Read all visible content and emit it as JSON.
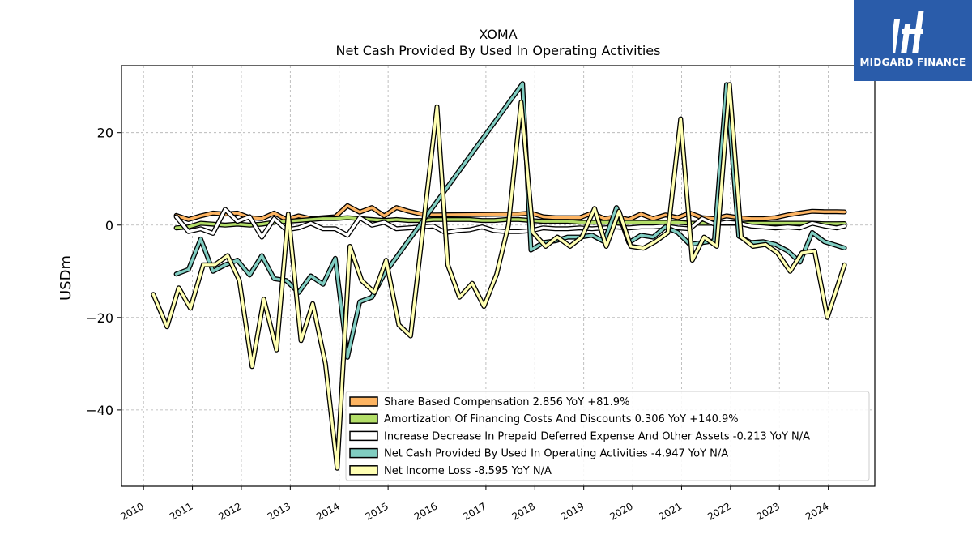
{
  "brand": {
    "name": "MIDGARD FINANCE",
    "logo_icon": "midgard-logo-icon",
    "bg": "#2a5caa"
  },
  "chart_data": {
    "type": "line",
    "title": "XOMA",
    "subtitle": "Net Cash Provided By Used In Operating Activities",
    "ylabel": "USDm",
    "xlabel": "",
    "xlim": [
      2009.55,
      2024.95
    ],
    "ylim": [
      -56.5,
      34.5
    ],
    "x_ticks": [
      2010,
      2011,
      2012,
      2013,
      2014,
      2015,
      2016,
      2017,
      2018,
      2019,
      2020,
      2021,
      2022,
      2023,
      2024
    ],
    "y_ticks": [
      -40,
      -20,
      0,
      20
    ],
    "grid": true,
    "legend_position": "lower-right",
    "series": [
      {
        "name": "Share Based Compensation",
        "legend": "Share Based Compensation  2.856 YoY +81.9%",
        "color": "#fdb462",
        "points": [
          [
            2010.67,
            2.1
          ],
          [
            2010.92,
            1.2
          ],
          [
            2011.17,
            2.0
          ],
          [
            2011.42,
            2.6
          ],
          [
            2011.67,
            2.4
          ],
          [
            2011.92,
            2.6
          ],
          [
            2012.17,
            1.6
          ],
          [
            2012.42,
            1.4
          ],
          [
            2012.67,
            2.6
          ],
          [
            2012.92,
            1.2
          ],
          [
            2013.17,
            2.0
          ],
          [
            2013.42,
            1.4
          ],
          [
            2013.67,
            1.6
          ],
          [
            2013.92,
            1.8
          ],
          [
            2014.17,
            4.2
          ],
          [
            2014.42,
            2.8
          ],
          [
            2014.67,
            3.8
          ],
          [
            2014.92,
            2.0
          ],
          [
            2015.17,
            3.8
          ],
          [
            2015.42,
            3.0
          ],
          [
            2015.67,
            2.4
          ],
          [
            2015.92,
            2.2
          ],
          [
            2017.67,
            2.4
          ],
          [
            2017.92,
            2.6
          ],
          [
            2018.17,
            1.8
          ],
          [
            2018.42,
            1.6
          ],
          [
            2018.67,
            1.6
          ],
          [
            2018.92,
            1.6
          ],
          [
            2019.17,
            2.6
          ],
          [
            2019.42,
            1.4
          ],
          [
            2019.67,
            1.8
          ],
          [
            2019.92,
            1.2
          ],
          [
            2020.17,
            2.4
          ],
          [
            2020.42,
            1.4
          ],
          [
            2020.67,
            2.2
          ],
          [
            2020.92,
            1.6
          ],
          [
            2021.17,
            2.6
          ],
          [
            2021.42,
            1.6
          ],
          [
            2021.67,
            1.4
          ],
          [
            2021.92,
            2.0
          ],
          [
            2022.17,
            1.6
          ],
          [
            2022.42,
            1.4
          ],
          [
            2022.67,
            1.4
          ],
          [
            2022.92,
            1.6
          ],
          [
            2023.17,
            2.2
          ],
          [
            2023.42,
            2.6
          ],
          [
            2023.67,
            3.0
          ],
          [
            2023.92,
            2.9
          ],
          [
            2024.17,
            2.9
          ],
          [
            2024.33,
            2.86
          ]
        ]
      },
      {
        "name": "Amortization Of Financing Costs And Discounts",
        "legend": "Amortization Of Financing Costs And Discounts  0.306 YoY +140.9%",
        "color": "#b3de69",
        "points": [
          [
            2010.67,
            -0.6
          ],
          [
            2010.92,
            -0.4
          ],
          [
            2011.17,
            0.4
          ],
          [
            2011.42,
            0.2
          ],
          [
            2011.67,
            0.0
          ],
          [
            2011.92,
            0.2
          ],
          [
            2012.17,
            0.0
          ],
          [
            2012.42,
            0.2
          ],
          [
            2012.67,
            0.6
          ],
          [
            2012.92,
            0.8
          ],
          [
            2013.17,
            1.0
          ],
          [
            2013.42,
            1.2
          ],
          [
            2013.67,
            1.4
          ],
          [
            2013.92,
            1.4
          ],
          [
            2014.17,
            1.6
          ],
          [
            2014.42,
            1.4
          ],
          [
            2014.67,
            1.2
          ],
          [
            2014.92,
            1.0
          ],
          [
            2015.17,
            1.2
          ],
          [
            2015.42,
            1.0
          ],
          [
            2015.67,
            1.0
          ],
          [
            2015.92,
            1.2
          ],
          [
            2016.17,
            1.2
          ],
          [
            2016.42,
            1.2
          ],
          [
            2016.67,
            1.2
          ],
          [
            2016.92,
            1.0
          ],
          [
            2017.17,
            1.0
          ],
          [
            2017.42,
            1.2
          ],
          [
            2017.67,
            1.2
          ],
          [
            2017.92,
            1.0
          ],
          [
            2018.17,
            0.8
          ],
          [
            2018.42,
            0.8
          ],
          [
            2018.67,
            0.8
          ],
          [
            2018.92,
            0.6
          ],
          [
            2019.17,
            0.6
          ],
          [
            2019.42,
            0.6
          ],
          [
            2019.67,
            0.6
          ],
          [
            2019.92,
            0.6
          ],
          [
            2020.17,
            0.6
          ],
          [
            2020.42,
            0.6
          ],
          [
            2020.67,
            0.6
          ],
          [
            2020.92,
            0.6
          ],
          [
            2021.17,
            0.4
          ],
          [
            2021.42,
            0.4
          ],
          [
            2021.67,
            0.4
          ],
          [
            2021.92,
            0.4
          ],
          [
            2022.17,
            0.4
          ],
          [
            2022.42,
            0.4
          ],
          [
            2022.67,
            0.4
          ],
          [
            2022.92,
            0.4
          ],
          [
            2023.17,
            0.4
          ],
          [
            2023.42,
            0.4
          ],
          [
            2023.67,
            0.4
          ],
          [
            2023.92,
            0.3
          ],
          [
            2024.17,
            0.3
          ],
          [
            2024.33,
            0.31
          ]
        ]
      },
      {
        "name": "Increase Decrease In Prepaid Deferred Expense And Other Assets",
        "legend": "Increase Decrease In Prepaid Deferred Expense And Other Assets  -0.213 YoY N/A",
        "color": "#ffffff",
        "points": [
          [
            2010.67,
            1.8
          ],
          [
            2010.92,
            -1.4
          ],
          [
            2011.17,
            -0.8
          ],
          [
            2011.42,
            -1.8
          ],
          [
            2011.67,
            3.4
          ],
          [
            2011.92,
            0.8
          ],
          [
            2012.17,
            1.8
          ],
          [
            2012.42,
            -2.6
          ],
          [
            2012.67,
            1.4
          ],
          [
            2012.92,
            -1.0
          ],
          [
            2013.17,
            -0.6
          ],
          [
            2013.42,
            0.4
          ],
          [
            2013.67,
            -0.8
          ],
          [
            2013.92,
            -0.8
          ],
          [
            2014.17,
            -2.2
          ],
          [
            2014.42,
            1.6
          ],
          [
            2014.67,
            0.0
          ],
          [
            2014.92,
            0.6
          ],
          [
            2015.17,
            -0.8
          ],
          [
            2015.42,
            -0.6
          ],
          [
            2015.67,
            -0.4
          ],
          [
            2015.92,
            -0.2
          ],
          [
            2016.17,
            -1.6
          ],
          [
            2016.42,
            -1.2
          ],
          [
            2016.67,
            -1.0
          ],
          [
            2016.92,
            -0.4
          ],
          [
            2017.17,
            -1.2
          ],
          [
            2017.42,
            -1.4
          ],
          [
            2017.67,
            -1.4
          ],
          [
            2017.92,
            -1.2
          ],
          [
            2018.17,
            -0.6
          ],
          [
            2018.42,
            -0.8
          ],
          [
            2018.67,
            -0.8
          ],
          [
            2018.92,
            -0.6
          ],
          [
            2019.17,
            -0.8
          ],
          [
            2019.42,
            -0.6
          ],
          [
            2019.67,
            -0.4
          ],
          [
            2019.92,
            -0.6
          ],
          [
            2020.17,
            -0.4
          ],
          [
            2020.42,
            -0.4
          ],
          [
            2020.67,
            -0.2
          ],
          [
            2020.92,
            -0.6
          ],
          [
            2021.17,
            -0.8
          ],
          [
            2021.42,
            1.4
          ],
          [
            2021.67,
            0.2
          ],
          [
            2021.92,
            0.6
          ],
          [
            2022.17,
            0.4
          ],
          [
            2022.42,
            -0.2
          ],
          [
            2022.67,
            -0.4
          ],
          [
            2022.92,
            -0.6
          ],
          [
            2023.17,
            -0.4
          ],
          [
            2023.42,
            -0.6
          ],
          [
            2023.67,
            0.4
          ],
          [
            2023.92,
            -0.2
          ],
          [
            2024.17,
            -0.6
          ],
          [
            2024.33,
            -0.21
          ]
        ]
      },
      {
        "name": "Net Cash Provided By Used In Operating Activities",
        "legend": "Net Cash Provided By Used In Operating Activities  -4.947 YoY N/A",
        "color": "#80cdc1",
        "points": [
          [
            2010.67,
            -10.6
          ],
          [
            2010.92,
            -9.6
          ],
          [
            2011.17,
            -3.0
          ],
          [
            2011.42,
            -10.0
          ],
          [
            2011.67,
            -8.6
          ],
          [
            2011.92,
            -7.6
          ],
          [
            2012.17,
            -10.8
          ],
          [
            2012.42,
            -6.6
          ],
          [
            2012.67,
            -11.6
          ],
          [
            2012.92,
            -12.0
          ],
          [
            2013.17,
            -14.6
          ],
          [
            2013.42,
            -11.0
          ],
          [
            2013.67,
            -12.8
          ],
          [
            2013.92,
            -7.2
          ],
          [
            2014.17,
            -28.6
          ],
          [
            2014.42,
            -16.6
          ],
          [
            2014.67,
            -15.6
          ],
          [
            2014.92,
            -10.6
          ],
          [
            2017.75,
            30.6
          ],
          [
            2017.92,
            -5.4
          ],
          [
            2018.17,
            -3.8
          ],
          [
            2018.42,
            -3.4
          ],
          [
            2018.67,
            -2.6
          ],
          [
            2018.92,
            -2.6
          ],
          [
            2019.17,
            -2.2
          ],
          [
            2019.42,
            -3.6
          ],
          [
            2019.67,
            3.8
          ],
          [
            2019.92,
            -3.8
          ],
          [
            2020.17,
            -2.2
          ],
          [
            2020.42,
            -2.6
          ],
          [
            2020.67,
            -0.4
          ],
          [
            2020.92,
            -1.6
          ],
          [
            2021.17,
            -4.2
          ],
          [
            2021.42,
            -3.8
          ],
          [
            2021.67,
            -3.4
          ],
          [
            2021.92,
            30.4
          ],
          [
            2022.17,
            -2.4
          ],
          [
            2022.42,
            -3.8
          ],
          [
            2022.67,
            -3.6
          ],
          [
            2022.92,
            -4.2
          ],
          [
            2023.17,
            -5.6
          ],
          [
            2023.42,
            -8.0
          ],
          [
            2023.67,
            -1.6
          ],
          [
            2023.92,
            -3.6
          ],
          [
            2024.33,
            -4.95
          ]
        ]
      },
      {
        "name": "Net Income Loss",
        "legend": "Net Income Loss  -8.595 YoY N/A",
        "color": "#ffffb3",
        "points": [
          [
            2010.2,
            -15.0
          ],
          [
            2010.48,
            -22.0
          ],
          [
            2010.72,
            -13.6
          ],
          [
            2010.96,
            -18.0
          ],
          [
            2011.22,
            -8.6
          ],
          [
            2011.46,
            -8.6
          ],
          [
            2011.72,
            -6.6
          ],
          [
            2011.96,
            -12.0
          ],
          [
            2012.22,
            -30.6
          ],
          [
            2012.46,
            -16.0
          ],
          [
            2012.72,
            -27.0
          ],
          [
            2012.96,
            2.4
          ],
          [
            2013.22,
            -25.0
          ],
          [
            2013.46,
            -17.0
          ],
          [
            2013.72,
            -30.0
          ],
          [
            2013.96,
            -52.6
          ],
          [
            2014.22,
            -4.6
          ],
          [
            2014.46,
            -12.0
          ],
          [
            2014.72,
            -14.6
          ],
          [
            2014.96,
            -7.6
          ],
          [
            2015.22,
            -21.6
          ],
          [
            2015.46,
            -24.0
          ],
          [
            2016.0,
            25.6
          ],
          [
            2016.22,
            -8.6
          ],
          [
            2016.46,
            -15.6
          ],
          [
            2016.72,
            -12.6
          ],
          [
            2016.96,
            -17.6
          ],
          [
            2017.22,
            -10.6
          ],
          [
            2017.46,
            0.0
          ],
          [
            2017.72,
            26.6
          ],
          [
            2017.96,
            -1.6
          ],
          [
            2018.22,
            -4.6
          ],
          [
            2018.46,
            -2.6
          ],
          [
            2018.72,
            -4.6
          ],
          [
            2018.96,
            -2.6
          ],
          [
            2019.22,
            3.6
          ],
          [
            2019.46,
            -4.6
          ],
          [
            2019.72,
            3.0
          ],
          [
            2019.96,
            -4.6
          ],
          [
            2020.22,
            -5.0
          ],
          [
            2020.46,
            -3.6
          ],
          [
            2020.72,
            -1.6
          ],
          [
            2020.98,
            23.0
          ],
          [
            2021.22,
            -7.6
          ],
          [
            2021.46,
            -2.6
          ],
          [
            2021.72,
            -4.6
          ],
          [
            2021.98,
            30.4
          ],
          [
            2022.22,
            -2.6
          ],
          [
            2022.46,
            -4.6
          ],
          [
            2022.72,
            -4.2
          ],
          [
            2022.96,
            -6.0
          ],
          [
            2023.22,
            -10.0
          ],
          [
            2023.46,
            -6.0
          ],
          [
            2023.72,
            -5.6
          ],
          [
            2023.98,
            -20.0
          ],
          [
            2024.33,
            -8.6
          ]
        ]
      }
    ]
  }
}
